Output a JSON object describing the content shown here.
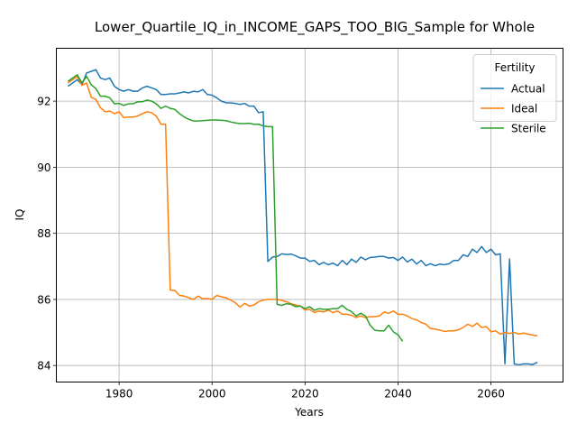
{
  "chart_data": {
    "type": "line",
    "title": "Lower_Quartile_IQ_in_INCOME_GAPS_TOO_BIG_Sample for Whole",
    "xlabel": "Years",
    "ylabel": "IQ",
    "xlim": [
      1966.5,
      2075.5
    ],
    "ylim": [
      83.5,
      93.6
    ],
    "xticks": [
      1980,
      2000,
      2020,
      2040,
      2060
    ],
    "yticks": [
      84,
      86,
      88,
      90,
      92
    ],
    "grid": true,
    "legend": {
      "title": "Fertility",
      "position": "top-right"
    },
    "series": [
      {
        "name": "Actual",
        "color": "#1f77b4",
        "points": [
          [
            1969,
            92.45
          ],
          [
            1970,
            92.55
          ],
          [
            1971,
            92.65
          ],
          [
            1972,
            92.5
          ],
          [
            1973,
            92.85
          ],
          [
            1974,
            92.9
          ],
          [
            1975,
            92.95
          ],
          [
            1976,
            92.7
          ],
          [
            1977,
            92.65
          ],
          [
            1978,
            92.7
          ],
          [
            1979,
            92.45
          ],
          [
            1980,
            92.35
          ],
          [
            1981,
            92.3
          ],
          [
            1982,
            92.35
          ],
          [
            1983,
            92.3
          ],
          [
            1984,
            92.3
          ],
          [
            1985,
            92.4
          ],
          [
            1986,
            92.45
          ],
          [
            1987,
            92.4
          ],
          [
            1988,
            92.35
          ],
          [
            1989,
            92.2
          ],
          [
            1990,
            92.2
          ],
          [
            1991,
            92.22
          ],
          [
            1992,
            92.22
          ],
          [
            1993,
            92.25
          ],
          [
            1994,
            92.28
          ],
          [
            1995,
            92.25
          ],
          [
            1996,
            92.3
          ],
          [
            1997,
            92.28
          ],
          [
            1998,
            92.35
          ],
          [
            1999,
            92.2
          ],
          [
            2000,
            92.18
          ],
          [
            2001,
            92.1
          ],
          [
            2002,
            92.0
          ],
          [
            2003,
            91.95
          ],
          [
            2004,
            91.95
          ],
          [
            2005,
            91.93
          ],
          [
            2006,
            91.9
          ],
          [
            2007,
            91.93
          ],
          [
            2008,
            91.85
          ],
          [
            2009,
            91.85
          ],
          [
            2010,
            91.65
          ],
          [
            2011,
            91.68
          ],
          [
            2012,
            87.15
          ],
          [
            2013,
            87.28
          ],
          [
            2014,
            87.3
          ],
          [
            2015,
            87.38
          ],
          [
            2016,
            87.36
          ],
          [
            2017,
            87.37
          ],
          [
            2018,
            87.32
          ],
          [
            2019,
            87.25
          ],
          [
            2020,
            87.25
          ],
          [
            2021,
            87.15
          ],
          [
            2022,
            87.18
          ],
          [
            2023,
            87.05
          ],
          [
            2024,
            87.12
          ],
          [
            2025,
            87.05
          ],
          [
            2026,
            87.1
          ],
          [
            2027,
            87.02
          ],
          [
            2028,
            87.18
          ],
          [
            2029,
            87.05
          ],
          [
            2030,
            87.22
          ],
          [
            2031,
            87.12
          ],
          [
            2032,
            87.28
          ],
          [
            2033,
            87.2
          ],
          [
            2034,
            87.27
          ],
          [
            2035,
            87.28
          ],
          [
            2036,
            87.3
          ],
          [
            2037,
            87.3
          ],
          [
            2038,
            87.25
          ],
          [
            2039,
            87.27
          ],
          [
            2040,
            87.18
          ],
          [
            2041,
            87.28
          ],
          [
            2042,
            87.13
          ],
          [
            2043,
            87.22
          ],
          [
            2044,
            87.07
          ],
          [
            2045,
            87.18
          ],
          [
            2046,
            87.02
          ],
          [
            2047,
            87.08
          ],
          [
            2048,
            87.02
          ],
          [
            2049,
            87.07
          ],
          [
            2050,
            87.05
          ],
          [
            2051,
            87.08
          ],
          [
            2052,
            87.18
          ],
          [
            2053,
            87.18
          ],
          [
            2054,
            87.35
          ],
          [
            2055,
            87.3
          ],
          [
            2056,
            87.52
          ],
          [
            2057,
            87.42
          ],
          [
            2058,
            87.6
          ],
          [
            2059,
            87.42
          ],
          [
            2060,
            87.52
          ],
          [
            2061,
            87.35
          ],
          [
            2062,
            87.38
          ],
          [
            2063,
            84.05
          ],
          [
            2064,
            87.22
          ],
          [
            2065,
            84.05
          ],
          [
            2066,
            84.02
          ],
          [
            2067,
            84.05
          ],
          [
            2068,
            84.05
          ],
          [
            2069,
            84.03
          ],
          [
            2070,
            84.1
          ]
        ]
      },
      {
        "name": "Ideal",
        "color": "#ff7f0e",
        "points": [
          [
            1969,
            92.55
          ],
          [
            1970,
            92.65
          ],
          [
            1971,
            92.75
          ],
          [
            1972,
            92.48
          ],
          [
            1973,
            92.55
          ],
          [
            1974,
            92.12
          ],
          [
            1975,
            92.05
          ],
          [
            1976,
            91.8
          ],
          [
            1977,
            91.68
          ],
          [
            1978,
            91.7
          ],
          [
            1979,
            91.62
          ],
          [
            1980,
            91.68
          ],
          [
            1981,
            91.5
          ],
          [
            1982,
            91.52
          ],
          [
            1983,
            91.52
          ],
          [
            1984,
            91.55
          ],
          [
            1985,
            91.62
          ],
          [
            1986,
            91.68
          ],
          [
            1987,
            91.65
          ],
          [
            1988,
            91.55
          ],
          [
            1989,
            91.3
          ],
          [
            1990,
            91.3
          ],
          [
            1991,
            86.28
          ],
          [
            1992,
            86.27
          ],
          [
            1993,
            86.12
          ],
          [
            1994,
            86.1
          ],
          [
            1995,
            86.05
          ],
          [
            1996,
            86.0
          ],
          [
            1997,
            86.1
          ],
          [
            1998,
            86.02
          ],
          [
            1999,
            86.03
          ],
          [
            2000,
            86.0
          ],
          [
            2001,
            86.12
          ],
          [
            2002,
            86.08
          ],
          [
            2003,
            86.05
          ],
          [
            2004,
            85.98
          ],
          [
            2005,
            85.9
          ],
          [
            2006,
            85.77
          ],
          [
            2007,
            85.88
          ],
          [
            2008,
            85.8
          ],
          [
            2009,
            85.83
          ],
          [
            2010,
            85.93
          ],
          [
            2011,
            85.98
          ],
          [
            2012,
            86.0
          ],
          [
            2013,
            86.0
          ],
          [
            2014,
            86.0
          ],
          [
            2015,
            85.97
          ],
          [
            2016,
            85.93
          ],
          [
            2017,
            85.87
          ],
          [
            2018,
            85.83
          ],
          [
            2019,
            85.8
          ],
          [
            2020,
            85.68
          ],
          [
            2021,
            85.7
          ],
          [
            2022,
            85.6
          ],
          [
            2023,
            85.65
          ],
          [
            2024,
            85.62
          ],
          [
            2025,
            85.68
          ],
          [
            2026,
            85.6
          ],
          [
            2027,
            85.65
          ],
          [
            2028,
            85.55
          ],
          [
            2029,
            85.55
          ],
          [
            2030,
            85.52
          ],
          [
            2031,
            85.45
          ],
          [
            2032,
            85.5
          ],
          [
            2033,
            85.45
          ],
          [
            2034,
            85.48
          ],
          [
            2035,
            85.48
          ],
          [
            2036,
            85.5
          ],
          [
            2037,
            85.62
          ],
          [
            2038,
            85.58
          ],
          [
            2039,
            85.65
          ],
          [
            2040,
            85.55
          ],
          [
            2041,
            85.55
          ],
          [
            2042,
            85.5
          ],
          [
            2043,
            85.42
          ],
          [
            2044,
            85.38
          ],
          [
            2045,
            85.3
          ],
          [
            2046,
            85.25
          ],
          [
            2047,
            85.12
          ],
          [
            2048,
            85.1
          ],
          [
            2049,
            85.07
          ],
          [
            2050,
            85.03
          ],
          [
            2051,
            85.05
          ],
          [
            2052,
            85.05
          ],
          [
            2053,
            85.08
          ],
          [
            2054,
            85.15
          ],
          [
            2055,
            85.25
          ],
          [
            2056,
            85.18
          ],
          [
            2057,
            85.28
          ],
          [
            2058,
            85.15
          ],
          [
            2059,
            85.18
          ],
          [
            2060,
            85.02
          ],
          [
            2061,
            85.05
          ],
          [
            2062,
            84.95
          ],
          [
            2063,
            85.0
          ],
          [
            2064,
            84.97
          ],
          [
            2065,
            85.0
          ],
          [
            2066,
            84.95
          ],
          [
            2067,
            84.98
          ],
          [
            2068,
            84.95
          ],
          [
            2069,
            84.92
          ],
          [
            2070,
            84.9
          ]
        ]
      },
      {
        "name": "Sterile",
        "color": "#2ca02c",
        "points": [
          [
            1969,
            92.6
          ],
          [
            1970,
            92.7
          ],
          [
            1971,
            92.8
          ],
          [
            1972,
            92.55
          ],
          [
            1973,
            92.75
          ],
          [
            1974,
            92.5
          ],
          [
            1975,
            92.38
          ],
          [
            1976,
            92.15
          ],
          [
            1977,
            92.15
          ],
          [
            1978,
            92.1
          ],
          [
            1979,
            91.92
          ],
          [
            1980,
            91.93
          ],
          [
            1981,
            91.87
          ],
          [
            1982,
            91.92
          ],
          [
            1983,
            91.92
          ],
          [
            1984,
            91.98
          ],
          [
            1985,
            91.98
          ],
          [
            1986,
            92.03
          ],
          [
            1987,
            92.0
          ],
          [
            1988,
            91.92
          ],
          [
            1989,
            91.78
          ],
          [
            1990,
            91.85
          ],
          [
            1991,
            91.78
          ],
          [
            1992,
            91.75
          ],
          [
            1993,
            91.62
          ],
          [
            1994,
            91.52
          ],
          [
            1995,
            91.45
          ],
          [
            1996,
            91.4
          ],
          [
            1997,
            91.4
          ],
          [
            1998,
            91.41
          ],
          [
            1999,
            91.42
          ],
          [
            2000,
            91.43
          ],
          [
            2001,
            91.43
          ],
          [
            2002,
            91.42
          ],
          [
            2003,
            91.41
          ],
          [
            2004,
            91.37
          ],
          [
            2005,
            91.34
          ],
          [
            2006,
            91.32
          ],
          [
            2007,
            91.32
          ],
          [
            2008,
            91.33
          ],
          [
            2009,
            91.3
          ],
          [
            2010,
            91.3
          ],
          [
            2011,
            91.25
          ],
          [
            2012,
            91.23
          ],
          [
            2013,
            91.23
          ],
          [
            2014,
            85.85
          ],
          [
            2015,
            85.82
          ],
          [
            2016,
            85.87
          ],
          [
            2017,
            85.85
          ],
          [
            2018,
            85.78
          ],
          [
            2019,
            85.8
          ],
          [
            2020,
            85.72
          ],
          [
            2021,
            85.78
          ],
          [
            2022,
            85.67
          ],
          [
            2023,
            85.72
          ],
          [
            2024,
            85.7
          ],
          [
            2025,
            85.7
          ],
          [
            2026,
            85.72
          ],
          [
            2027,
            85.72
          ],
          [
            2028,
            85.82
          ],
          [
            2029,
            85.7
          ],
          [
            2030,
            85.63
          ],
          [
            2031,
            85.5
          ],
          [
            2032,
            85.58
          ],
          [
            2033,
            85.5
          ],
          [
            2034,
            85.22
          ],
          [
            2035,
            85.07
          ],
          [
            2036,
            85.05
          ],
          [
            2037,
            85.05
          ],
          [
            2038,
            85.22
          ],
          [
            2039,
            85.02
          ],
          [
            2040,
            84.93
          ],
          [
            2041,
            84.73
          ]
        ]
      }
    ]
  }
}
